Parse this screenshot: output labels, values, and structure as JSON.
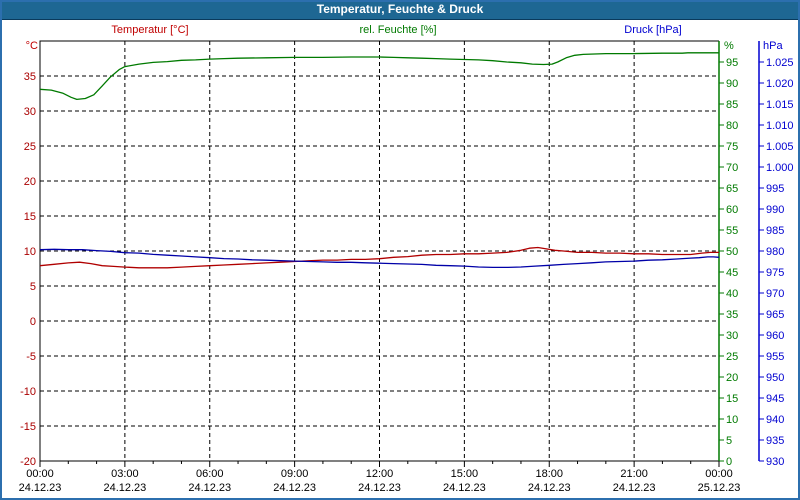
{
  "window": {
    "title": "Temperatur, Feuchte & Druck"
  },
  "colors": {
    "titlebar_bg": "#1E6793",
    "outer_border": "#2C6FAE",
    "temperature": "#B00000",
    "temperature_label": "#AA0000",
    "humidity": "#007A00",
    "pressure_line": "#0000A8",
    "pressure_label": "#0000D0",
    "gridline": "#000000"
  },
  "chart_data": {
    "type": "line",
    "title": "Temperatur, Feuchte & Druck",
    "grid": "dashed black, horizontal every 5 °C, vertical every 3 h",
    "x_axis": {
      "range_hours": [
        0,
        24
      ],
      "minor_tick_every_hours": 1,
      "gridline_hours": [
        3,
        6,
        9,
        12,
        15,
        18,
        21
      ],
      "major_ticks": [
        {
          "hour": 0,
          "time": "00:00",
          "date": "24.12.23"
        },
        {
          "hour": 3,
          "time": "03:00",
          "date": "24.12.23"
        },
        {
          "hour": 6,
          "time": "06:00",
          "date": "24.12.23"
        },
        {
          "hour": 9,
          "time": "09:00",
          "date": "24.12.23"
        },
        {
          "hour": 12,
          "time": "12:00",
          "date": "24.12.23"
        },
        {
          "hour": 15,
          "time": "15:00",
          "date": "24.12.23"
        },
        {
          "hour": 18,
          "time": "18:00",
          "date": "24.12.23"
        },
        {
          "hour": 21,
          "time": "21:00",
          "date": "24.12.23"
        },
        {
          "hour": 24,
          "time": "00:00",
          "date": "25.12.23"
        }
      ]
    },
    "y_axes": [
      {
        "id": "temperature",
        "title": "Temperatur [°C]",
        "unit": "°C",
        "side": "left",
        "color": "#AA0000",
        "range": [
          -20,
          40
        ],
        "gridlines": true,
        "tick_values": [
          35,
          30,
          25,
          20,
          15,
          10,
          5,
          0,
          -5,
          -10,
          -15,
          -20
        ],
        "tick_labels": [
          "35",
          "30",
          "25",
          "20",
          "15",
          "10",
          "5",
          "0",
          "-5",
          "-10",
          "-15",
          "-20"
        ]
      },
      {
        "id": "humidity",
        "title": "rel. Feuchte [%]",
        "unit": "%",
        "side": "right",
        "color": "#007A00",
        "range": [
          0,
          100
        ],
        "gridlines": false,
        "tick_values": [
          95,
          90,
          85,
          80,
          75,
          70,
          65,
          60,
          55,
          50,
          45,
          40,
          35,
          30,
          25,
          20,
          15,
          10,
          5,
          0
        ],
        "tick_labels": [
          "95",
          "90",
          "85",
          "80",
          "75",
          "70",
          "65",
          "60",
          "55",
          "50",
          "45",
          "40",
          "35",
          "30",
          "25",
          "20",
          "15",
          "10",
          "5",
          "0"
        ]
      },
      {
        "id": "pressure",
        "title": "Druck [hPa]",
        "unit": "hPa",
        "side": "right-outer",
        "color": "#0000D0",
        "range": [
          930,
          1030
        ],
        "gridlines": false,
        "tick_values": [
          1025,
          1020,
          1015,
          1010,
          1005,
          1000,
          995,
          990,
          985,
          980,
          975,
          970,
          965,
          960,
          955,
          950,
          945,
          940,
          935,
          930
        ],
        "tick_labels": [
          "1.025",
          "1.020",
          "1.015",
          "1.010",
          "1.005",
          "1.000",
          "995",
          "990",
          "985",
          "980",
          "975",
          "970",
          "965",
          "960",
          "955",
          "950",
          "945",
          "940",
          "935",
          "930"
        ]
      }
    ],
    "series": [
      {
        "name": "Temperatur",
        "unit": "°C",
        "axis": "temperature",
        "color": "#B00000",
        "points": [
          [
            0,
            7.9
          ],
          [
            0.5,
            8.1
          ],
          [
            1,
            8.3
          ],
          [
            1.4,
            8.4
          ],
          [
            1.8,
            8.2
          ],
          [
            2.2,
            7.9
          ],
          [
            2.6,
            7.8
          ],
          [
            3,
            7.7
          ],
          [
            3.5,
            7.6
          ],
          [
            4,
            7.6
          ],
          [
            4.5,
            7.6
          ],
          [
            5,
            7.7
          ],
          [
            5.5,
            7.8
          ],
          [
            6,
            7.9
          ],
          [
            6.5,
            8.0
          ],
          [
            7,
            8.1
          ],
          [
            7.5,
            8.2
          ],
          [
            8,
            8.3
          ],
          [
            8.5,
            8.4
          ],
          [
            9,
            8.5
          ],
          [
            9.5,
            8.6
          ],
          [
            10,
            8.7
          ],
          [
            10.5,
            8.7
          ],
          [
            11,
            8.8
          ],
          [
            11.5,
            8.8
          ],
          [
            12,
            8.9
          ],
          [
            12.5,
            9.1
          ],
          [
            13,
            9.2
          ],
          [
            13.5,
            9.4
          ],
          [
            14,
            9.5
          ],
          [
            14.5,
            9.5
          ],
          [
            15,
            9.6
          ],
          [
            15.5,
            9.6
          ],
          [
            16,
            9.7
          ],
          [
            16.5,
            9.8
          ],
          [
            17,
            10.1
          ],
          [
            17.3,
            10.4
          ],
          [
            17.6,
            10.5
          ],
          [
            17.9,
            10.3
          ],
          [
            18.2,
            10.1
          ],
          [
            18.5,
            10.0
          ],
          [
            19,
            9.8
          ],
          [
            19.5,
            9.8
          ],
          [
            20,
            9.7
          ],
          [
            20.5,
            9.7
          ],
          [
            21,
            9.6
          ],
          [
            21.5,
            9.6
          ],
          [
            22,
            9.5
          ],
          [
            22.5,
            9.5
          ],
          [
            23,
            9.5
          ],
          [
            23.4,
            9.7
          ],
          [
            23.7,
            9.8
          ],
          [
            24,
            9.8
          ]
        ]
      },
      {
        "name": "rel. Feuchte",
        "unit": "%",
        "axis": "humidity",
        "color": "#007A00",
        "points": [
          [
            0,
            88.5
          ],
          [
            0.4,
            88.3
          ],
          [
            0.8,
            87.6
          ],
          [
            1.1,
            86.6
          ],
          [
            1.3,
            86.1
          ],
          [
            1.6,
            86.3
          ],
          [
            1.9,
            87.2
          ],
          [
            2.2,
            89.3
          ],
          [
            2.5,
            91.5
          ],
          [
            2.8,
            93.2
          ],
          [
            3,
            93.9
          ],
          [
            3.5,
            94.5
          ],
          [
            4,
            94.9
          ],
          [
            4.5,
            95.1
          ],
          [
            5,
            95.4
          ],
          [
            5.5,
            95.5
          ],
          [
            6,
            95.7
          ],
          [
            6.5,
            95.8
          ],
          [
            7,
            95.9
          ],
          [
            8,
            96.0
          ],
          [
            9,
            96.1
          ],
          [
            10,
            96.1
          ],
          [
            11,
            96.2
          ],
          [
            12,
            96.2
          ],
          [
            12.5,
            96.1
          ],
          [
            13,
            96.0
          ],
          [
            13.5,
            95.9
          ],
          [
            14,
            95.8
          ],
          [
            14.5,
            95.7
          ],
          [
            15,
            95.6
          ],
          [
            15.5,
            95.5
          ],
          [
            16,
            95.3
          ],
          [
            16.5,
            95.0
          ],
          [
            17,
            94.8
          ],
          [
            17.4,
            94.5
          ],
          [
            17.8,
            94.4
          ],
          [
            18.1,
            94.5
          ],
          [
            18.3,
            95.0
          ],
          [
            18.6,
            96.0
          ],
          [
            18.9,
            96.6
          ],
          [
            19.2,
            96.8
          ],
          [
            19.6,
            96.9
          ],
          [
            20,
            97.0
          ],
          [
            21,
            97.0
          ],
          [
            22,
            97.1
          ],
          [
            22.7,
            97.1
          ],
          [
            22.9,
            97.2
          ],
          [
            24,
            97.2
          ]
        ]
      },
      {
        "name": "Druck",
        "unit": "hPa",
        "axis": "pressure",
        "color": "#0000A8",
        "points": [
          [
            0,
            980.3
          ],
          [
            0.5,
            980.4
          ],
          [
            1,
            980.3
          ],
          [
            1.5,
            980.3
          ],
          [
            2,
            980.1
          ],
          [
            2.5,
            979.9
          ],
          [
            3,
            979.6
          ],
          [
            3.5,
            979.5
          ],
          [
            4,
            979.2
          ],
          [
            4.5,
            979.0
          ],
          [
            5,
            978.8
          ],
          [
            5.5,
            978.6
          ],
          [
            6,
            978.4
          ],
          [
            6.5,
            978.2
          ],
          [
            7,
            978.1
          ],
          [
            7.5,
            977.9
          ],
          [
            8,
            977.8
          ],
          [
            8.5,
            977.7
          ],
          [
            9,
            977.6
          ],
          [
            9.5,
            977.5
          ],
          [
            10,
            977.4
          ],
          [
            10.5,
            977.3
          ],
          [
            11,
            977.3
          ],
          [
            11.5,
            977.2
          ],
          [
            12,
            977.1
          ],
          [
            12.5,
            977.0
          ],
          [
            13,
            976.9
          ],
          [
            13.5,
            976.8
          ],
          [
            14,
            976.6
          ],
          [
            14.5,
            976.5
          ],
          [
            15,
            976.4
          ],
          [
            15.5,
            976.2
          ],
          [
            16,
            976.1
          ],
          [
            16.5,
            976.1
          ],
          [
            17,
            976.2
          ],
          [
            17.5,
            976.4
          ],
          [
            18,
            976.6
          ],
          [
            18.5,
            976.8
          ],
          [
            19,
            977.0
          ],
          [
            19.5,
            977.2
          ],
          [
            20,
            977.4
          ],
          [
            20.5,
            977.5
          ],
          [
            21,
            977.6
          ],
          [
            21.5,
            977.8
          ],
          [
            22,
            977.9
          ],
          [
            22.5,
            978.1
          ],
          [
            23,
            978.3
          ],
          [
            23.3,
            978.4
          ],
          [
            23.6,
            978.6
          ],
          [
            23.8,
            978.6
          ],
          [
            24,
            978.5
          ]
        ]
      }
    ]
  }
}
